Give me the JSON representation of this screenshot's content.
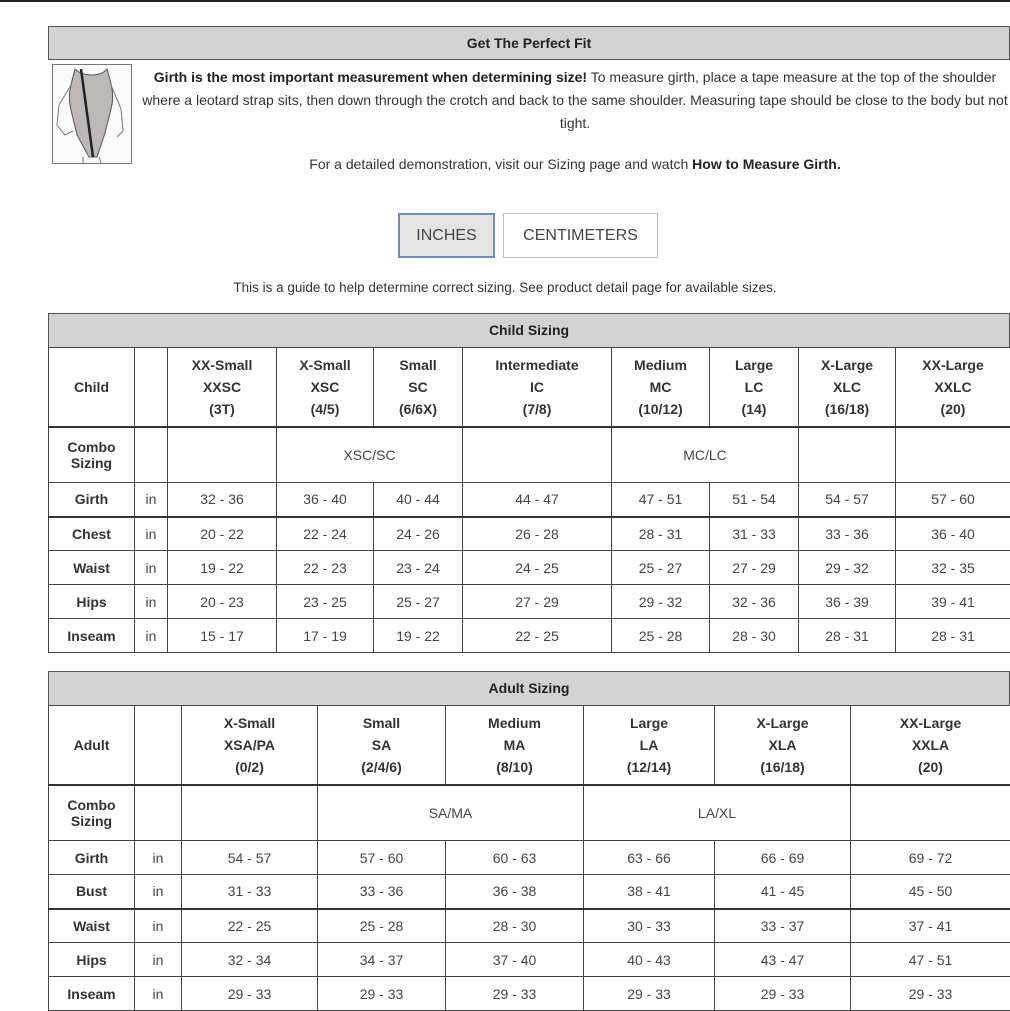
{
  "fit": {
    "title": "Get The Perfect Fit",
    "intro_bold": "Girth is the most important measurement when determining size!",
    "intro_text": " To measure girth, place a tape measure at the top of the shoulder where a leotard strap sits, then down through the crotch and back to the same shoulder. Measuring tape should be close to the body but not tight.",
    "demo_text": "For a detailed demonstration, visit our Sizing page and watch ",
    "demo_link": "How to Measure Girth."
  },
  "units": {
    "inches": "INCHES",
    "centimeters": "CENTIMETERS",
    "selected": "INCHES"
  },
  "guide": "This is a guide to help determine correct sizing. See product detail page for available sizes.",
  "child": {
    "title": "Child Sizing",
    "corner": "Child",
    "combo_label": [
      "Combo",
      "Sizing"
    ],
    "sizes": [
      [
        "XX-Small",
        "XXSC",
        "(3T)"
      ],
      [
        "X-Small",
        "XSC",
        "(4/5)"
      ],
      [
        "Small",
        "SC",
        "(6/6X)"
      ],
      [
        "Intermediate",
        "IC",
        "(7/8)"
      ],
      [
        "Medium",
        "MC",
        "(10/12)"
      ],
      [
        "Large",
        "LC",
        "(14)"
      ],
      [
        "X-Large",
        "XLC",
        "(16/18)"
      ],
      [
        "XX-Large",
        "XXLC",
        "(20)"
      ]
    ],
    "combos": [
      {
        "label": "",
        "span": 1
      },
      {
        "label": "XSC/SC",
        "span": 2
      },
      {
        "label": "",
        "span": 1
      },
      {
        "label": "MC/LC",
        "span": 2
      },
      {
        "label": "",
        "span": 1
      },
      {
        "label": "",
        "span": 1
      }
    ],
    "rows": [
      {
        "label": "Girth",
        "unit": "in",
        "values": [
          "32 - 36",
          "36 - 40",
          "40 - 44",
          "44 - 47",
          "47 - 51",
          "51 - 54",
          "54 - 57",
          "57 - 60"
        ]
      },
      {
        "label": "Chest",
        "unit": "in",
        "values": [
          "20 - 22",
          "22 - 24",
          "24 - 26",
          "26 - 28",
          "28 - 31",
          "31 - 33",
          "33 - 36",
          "36 - 40"
        ]
      },
      {
        "label": "Waist",
        "unit": "in",
        "values": [
          "19 - 22",
          "22 - 23",
          "23 - 24",
          "24 - 25",
          "25 - 27",
          "27 - 29",
          "29 - 32",
          "32 - 35"
        ]
      },
      {
        "label": "Hips",
        "unit": "in",
        "values": [
          "20 - 23",
          "23 - 25",
          "25 - 27",
          "27 - 29",
          "29 - 32",
          "32 - 36",
          "36 - 39",
          "39 - 41"
        ]
      },
      {
        "label": "Inseam",
        "unit": "in",
        "values": [
          "15 - 17",
          "17 - 19",
          "19 - 22",
          "22 - 25",
          "25 - 28",
          "28 - 30",
          "28 - 31",
          "28 - 31"
        ]
      }
    ]
  },
  "adult": {
    "title": "Adult Sizing",
    "corner": "Adult",
    "combo_label": [
      "Combo",
      "Sizing"
    ],
    "sizes": [
      [
        "X-Small",
        "XSA/PA",
        "(0/2)"
      ],
      [
        "Small",
        "SA",
        "(2/4/6)"
      ],
      [
        "Medium",
        "MA",
        "(8/10)"
      ],
      [
        "Large",
        "LA",
        "(12/14)"
      ],
      [
        "X-Large",
        "XLA",
        "(16/18)"
      ],
      [
        "XX-Large",
        "XXLA",
        "(20)"
      ]
    ],
    "combos": [
      {
        "label": "",
        "span": 1
      },
      {
        "label": "SA/MA",
        "span": 2
      },
      {
        "label": "LA/XL",
        "span": 2
      },
      {
        "label": "",
        "span": 1
      }
    ],
    "rows": [
      {
        "label": "Girth",
        "unit": "in",
        "values": [
          "54 - 57",
          "57 - 60",
          "60 - 63",
          "63 - 66",
          "66 - 69",
          "69 - 72"
        ]
      },
      {
        "label": "Bust",
        "unit": "in",
        "values": [
          "31 - 33",
          "33 - 36",
          "36 - 38",
          "38 - 41",
          "41 - 45",
          "45 - 50"
        ]
      },
      {
        "label": "Waist",
        "unit": "in",
        "values": [
          "22 - 25",
          "25 - 28",
          "28 - 30",
          "30 - 33",
          "33 - 37",
          "37 - 41"
        ]
      },
      {
        "label": "Hips",
        "unit": "in",
        "values": [
          "32 - 34",
          "34 - 37",
          "37 - 40",
          "40 - 43",
          "43 - 47",
          "47 - 51"
        ]
      },
      {
        "label": "Inseam",
        "unit": "in",
        "values": [
          "29 - 33",
          "29 - 33",
          "29 - 33",
          "29 - 33",
          "29 - 33",
          "29 - 33"
        ]
      }
    ]
  }
}
